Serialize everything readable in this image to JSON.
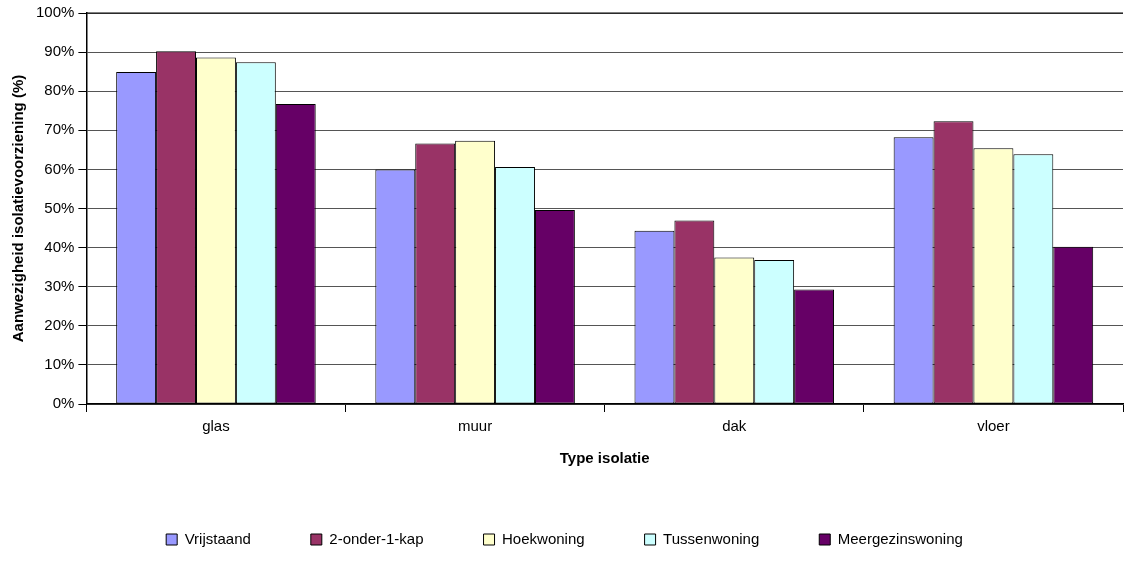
{
  "chart_data": {
    "type": "bar",
    "xlabel": "Type isolatie",
    "ylabel": "Aanwezigheid isolatievoorziening (%)",
    "categories": [
      "glas",
      "muur",
      "dak",
      "vloer"
    ],
    "series": [
      {
        "name": "Vrijstaand",
        "color": "#9999ff",
        "values": [
          84.9,
          60.0,
          44.3,
          68.2
        ]
      },
      {
        "name": "2-onder-1-kap",
        "color": "#993366",
        "values": [
          90.2,
          66.6,
          46.9,
          72.3
        ]
      },
      {
        "name": "Hoekwoning",
        "color": "#ffffcc",
        "values": [
          88.6,
          67.3,
          37.5,
          65.4
        ]
      },
      {
        "name": "Tussenwoning",
        "color": "#ccffff",
        "values": [
          87.4,
          60.6,
          36.8,
          63.9
        ]
      },
      {
        "name": "Meergezinswoning",
        "color": "#660066",
        "values": [
          76.7,
          49.6,
          29.3,
          40.2
        ]
      }
    ],
    "ylim": [
      0,
      100
    ],
    "yticks": [
      {
        "value": 0,
        "label": "0%"
      },
      {
        "value": 10,
        "label": "10%"
      },
      {
        "value": 20,
        "label": "20%"
      },
      {
        "value": 30,
        "label": "30%"
      },
      {
        "value": 40,
        "label": "40%"
      },
      {
        "value": 50,
        "label": "50%"
      },
      {
        "value": 60,
        "label": "60%"
      },
      {
        "value": 70,
        "label": "70%"
      },
      {
        "value": 80,
        "label": "80%"
      },
      {
        "value": 90,
        "label": "90%"
      },
      {
        "value": 100,
        "label": "100%"
      }
    ],
    "grid": "y",
    "legend": "bottom"
  }
}
